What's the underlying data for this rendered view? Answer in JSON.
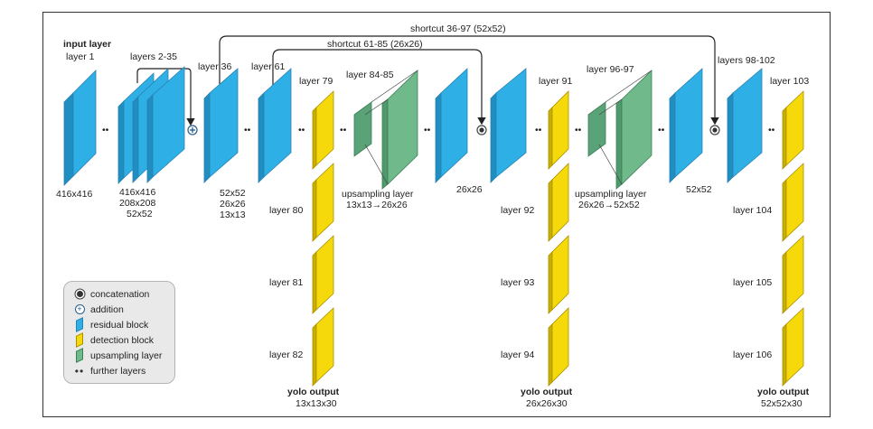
{
  "colors": {
    "residual": "#2eb0e6",
    "detection": "#f6d90a",
    "upsampling": "#6fb98a",
    "line": "#333333"
  },
  "labels": {
    "input_title": "input layer",
    "layer1": "layer  1",
    "dim_416": "416x416",
    "layers_2_35": "layers  2-35",
    "dims_2_35": [
      "416x416",
      "208x208",
      "52x52"
    ],
    "layer36": "layer 36",
    "layer61": "layer 61",
    "dims_36_61": [
      "52x52",
      "26x26",
      "13x13"
    ],
    "layer79": "layer 79",
    "layer80": "layer 80",
    "layer81": "layer 81",
    "layer82": "layer 82",
    "yolo1_title": "yolo output",
    "yolo1_dim": "13x13x30",
    "layer84_85": "layer 84-85",
    "upsampling1": "upsampling layer",
    "upsampling1_dim": "13x13→26x26",
    "dim_26": "26x26",
    "layer91": "layer 91",
    "layer92": "layer 92",
    "layer93": "layer 93",
    "layer94": "layer 94",
    "yolo2_title": "yolo output",
    "yolo2_dim": "26x26x30",
    "layer96_97": "layer 96-97",
    "upsampling2": "upsampling layer",
    "upsampling2_dim": "26x26→52x52",
    "dim_52": "52x52",
    "layers98_102": "layers 98-102",
    "layer103": "layer 103",
    "layer104": "layer 104",
    "layer105": "layer 105",
    "layer106": "layer 106",
    "yolo3_title": "yolo output",
    "yolo3_dim": "52x52x30",
    "shortcut_36_97": "shortcut 36-97  (52x52)",
    "shortcut_61_85": "shortcut 61-85  (26x26)",
    "further": "••"
  },
  "legend": {
    "concatenation": "concatenation",
    "addition": "addition",
    "residual": "residual block",
    "detection": "detection block",
    "upsampling": "upsampling layer",
    "further": "further layers",
    "plus_glyph": "+",
    "dots_glyph": "••"
  }
}
